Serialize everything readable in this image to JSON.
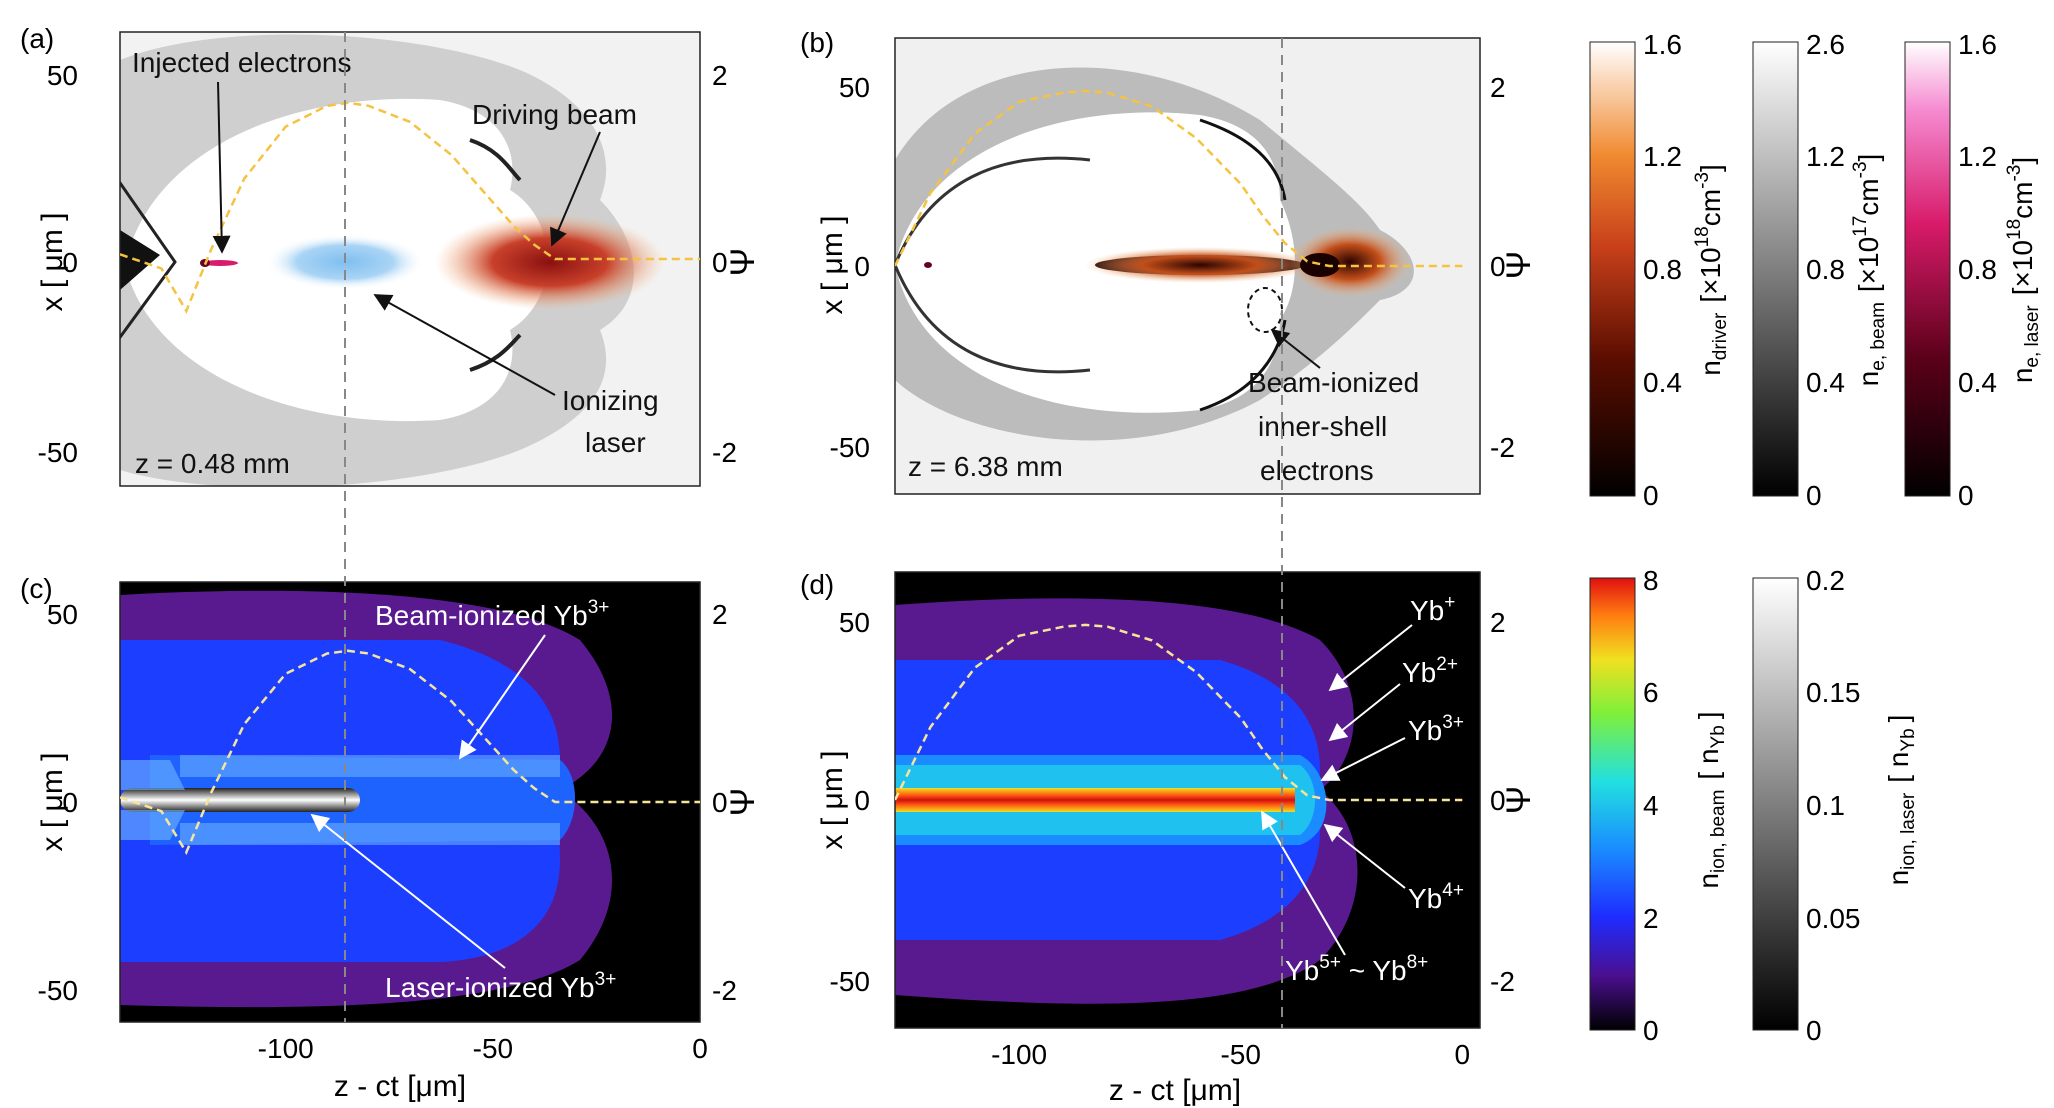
{
  "figure": {
    "colorbars": {
      "driver": {
        "label_main": "n",
        "label_sub": "driver",
        "label_unit": "[×10",
        "label_exp": "18",
        "label_unit2": "cm",
        "label_exp2": "-3",
        "label_close": "]",
        "ticks": [
          "0",
          "0.4",
          "0.8",
          "1.2",
          "1.6"
        ],
        "range": [
          0,
          1.6
        ]
      },
      "beam": {
        "label_main": "n",
        "label_sub": "e, beam",
        "label_unit": "[×10",
        "label_exp": "17",
        "label_unit2": "cm",
        "label_exp2": "-3",
        "label_close": "]",
        "ticks": [
          "0",
          "0.4",
          "0.8",
          "1.2",
          "2.6"
        ],
        "range": [
          0,
          2.6
        ]
      },
      "laser": {
        "label_main": "n",
        "label_sub": "e, laser",
        "label_unit": "[×10",
        "label_exp": "18",
        "label_unit2": "cm",
        "label_exp2": "-3",
        "label_close": "]",
        "ticks": [
          "0",
          "0.4",
          "0.8",
          "1.2",
          "1.6"
        ],
        "range": [
          0,
          1.6
        ]
      },
      "ion_beam": {
        "label_main": "n",
        "label_sub": "ion, beam",
        "label_unit": "[ n",
        "label_sub2": "Yb",
        "label_close": "]",
        "ticks": [
          "0",
          "2",
          "4",
          "6",
          "8"
        ],
        "range": [
          0,
          8
        ]
      },
      "ion_laser": {
        "label_main": "n",
        "label_sub": "ion, laser",
        "label_unit": "[ n",
        "label_sub2": "Yb",
        "label_close": "]",
        "ticks": [
          "0",
          "0.05",
          "0.1",
          "0.15",
          "0.2"
        ],
        "range": [
          0,
          0.2
        ]
      }
    },
    "colors": {
      "psi_line": "#f5c242",
      "dashed_divider": "#888888",
      "arrow_black": "#111111",
      "arrow_white": "#ffffff",
      "ion_blue": "#1c4dff",
      "ion_purple": "#5a1a8f"
    }
  },
  "chart_data": [
    {
      "panel": "a",
      "type": "heatmap",
      "title": "(a)",
      "xlabel": "",
      "ylabel": "x [ μm ]",
      "y2label": "Ψ",
      "xlim": [
        -140,
        0
      ],
      "ylim": [
        -58,
        58
      ],
      "y2lim": [
        -2.4,
        2.4
      ],
      "yticks": [
        "50",
        "0",
        "-50"
      ],
      "y2ticks": [
        "2",
        "0",
        "-2"
      ],
      "annotations": [
        "Injected electrons",
        "Driving beam",
        "Ionizing laser",
        "z = 0.48 mm"
      ],
      "annotation_lines": {
        "ionizing": [
          "Ionizing",
          "laser"
        ]
      },
      "psi_curve": {
        "z": [
          -140,
          -130,
          -124,
          -118,
          -110,
          -100,
          -90,
          -85,
          -80,
          -70,
          -60,
          -50,
          -45,
          -40,
          -35,
          -30,
          -20,
          -10,
          0
        ],
        "psi": [
          0.05,
          -0.1,
          -0.55,
          0.1,
          0.85,
          1.4,
          1.62,
          1.65,
          1.62,
          1.45,
          1.1,
          0.6,
          0.35,
          0.15,
          0.0,
          0.0,
          0.0,
          0.0,
          0.0
        ]
      }
    },
    {
      "panel": "b",
      "type": "heatmap",
      "title": "(b)",
      "xlabel": "",
      "ylabel": "x [ μm ]",
      "y2label": "Ψ",
      "xlim": [
        -128,
        4
      ],
      "ylim": [
        -63,
        63
      ],
      "y2lim": [
        -2.5,
        2.5
      ],
      "yticks": [
        "50",
        "0",
        "-50"
      ],
      "y2ticks": [
        "2",
        "0",
        "-2"
      ],
      "annotations": [
        "Beam-ionized",
        "inner-shell",
        "electrons",
        "z = 6.38 mm"
      ],
      "psi_curve": {
        "z": [
          -128,
          -120,
          -110,
          -100,
          -90,
          -85,
          -80,
          -70,
          -60,
          -50,
          -45,
          -40,
          -35,
          -30,
          -25,
          -15,
          0
        ],
        "psi": [
          0.0,
          0.8,
          1.45,
          1.8,
          1.9,
          1.92,
          1.9,
          1.75,
          1.4,
          0.9,
          0.55,
          0.25,
          0.05,
          0.0,
          0.0,
          0.0,
          0.0
        ]
      }
    },
    {
      "panel": "c",
      "type": "heatmap",
      "title": "(c)",
      "xlabel": "z - ct  [μm]",
      "ylabel": "x [ μm ]",
      "y2label": "Ψ",
      "xlim": [
        -140,
        0
      ],
      "ylim": [
        -58,
        58
      ],
      "y2lim": [
        -2.4,
        2.4
      ],
      "xticks": [
        "-100",
        "-50",
        "0"
      ],
      "xtick_values": [
        -100,
        -50,
        0
      ],
      "yticks": [
        "50",
        "0",
        "-50"
      ],
      "y2ticks": [
        "2",
        "0",
        "-2"
      ],
      "annotations": {
        "beam_label": "Beam-ionized Yb",
        "beam_sup": "3+",
        "laser_label": "Laser-ionized Yb",
        "laser_sup": "3+"
      },
      "psi_curve": {
        "z": [
          -140,
          -130,
          -124,
          -118,
          -110,
          -100,
          -90,
          -85,
          -80,
          -70,
          -60,
          -50,
          -45,
          -40,
          -35,
          -30,
          -20,
          -10,
          0
        ],
        "psi": [
          0.05,
          -0.1,
          -0.55,
          0.1,
          0.85,
          1.4,
          1.62,
          1.65,
          1.62,
          1.45,
          1.1,
          0.6,
          0.35,
          0.15,
          0.0,
          0.0,
          0.0,
          0.0,
          0.0
        ]
      }
    },
    {
      "panel": "d",
      "type": "heatmap",
      "title": "(d)",
      "xlabel": "z - ct  [μm]",
      "ylabel": "x [ μm ]",
      "y2label": "Ψ",
      "xlim": [
        -128,
        4
      ],
      "ylim": [
        -63,
        63
      ],
      "y2lim": [
        -2.5,
        2.5
      ],
      "xticks": [
        "-100",
        "-50",
        "0"
      ],
      "xtick_values": [
        -100,
        -50,
        0
      ],
      "yticks": [
        "50",
        "0",
        "-50"
      ],
      "y2ticks": [
        "2",
        "0",
        "-2"
      ],
      "annotations": {
        "yb1": "Yb",
        "yb1_sup": "+",
        "yb2": "Yb",
        "yb2_sup": "2+",
        "yb3": "Yb",
        "yb3_sup": "3+",
        "yb4": "Yb",
        "yb4_sup": "4+",
        "yb58a": "Yb",
        "yb58a_sup": "5+",
        "yb58_sep": " ~ Yb",
        "yb58b_sup": "8+"
      },
      "psi_curve": {
        "z": [
          -128,
          -120,
          -110,
          -100,
          -90,
          -85,
          -80,
          -70,
          -60,
          -50,
          -45,
          -40,
          -35,
          -30,
          -25,
          -15,
          0
        ],
        "psi": [
          0.0,
          0.8,
          1.45,
          1.8,
          1.9,
          1.92,
          1.9,
          1.75,
          1.4,
          0.9,
          0.55,
          0.25,
          0.05,
          0.0,
          0.0,
          0.0,
          0.0
        ]
      }
    }
  ]
}
